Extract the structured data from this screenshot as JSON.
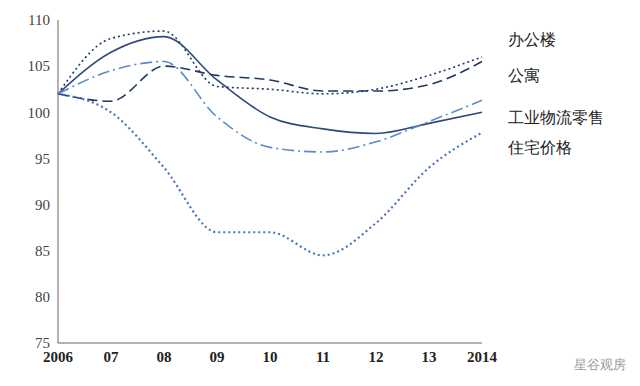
{
  "chart_data": {
    "type": "line",
    "categories": [
      "2006",
      "07",
      "08",
      "09",
      "10",
      "11",
      "12",
      "13",
      "2014"
    ],
    "ylim": [
      75,
      110
    ],
    "yticks": [
      75,
      80,
      85,
      90,
      95,
      100,
      105,
      110
    ],
    "grid": false,
    "series": [
      {
        "name": "办公楼",
        "color": "#1f3864",
        "line_style": "dotted",
        "values": [
          102,
          108,
          108.8,
          102.8,
          102.5,
          102,
          102.5,
          104,
          106
        ]
      },
      {
        "name": "公寓",
        "color": "#1f3864",
        "line_style": "dashed",
        "values": [
          102,
          101.2,
          105,
          104,
          103.5,
          102.3,
          102.3,
          103,
          105.5
        ]
      },
      {
        "color": "#2e4a7a",
        "line_style": "solid",
        "values": [
          102,
          106.5,
          108.2,
          103.5,
          99.5,
          98.2,
          97.7,
          98.8,
          100
        ]
      },
      {
        "name": "工业物流零售",
        "color": "#5b8cc8",
        "line_style": "dashdot",
        "values": [
          102,
          104.5,
          105.5,
          99.5,
          96.2,
          95.7,
          96.8,
          99,
          101.3
        ]
      },
      {
        "name": "住宅价格",
        "color": "#4a78b5",
        "line_style": "dotted",
        "values": [
          102,
          100,
          94,
          87,
          87,
          84.5,
          88,
          94,
          97.8
        ]
      }
    ],
    "annotations": [
      "星谷观房"
    ]
  }
}
